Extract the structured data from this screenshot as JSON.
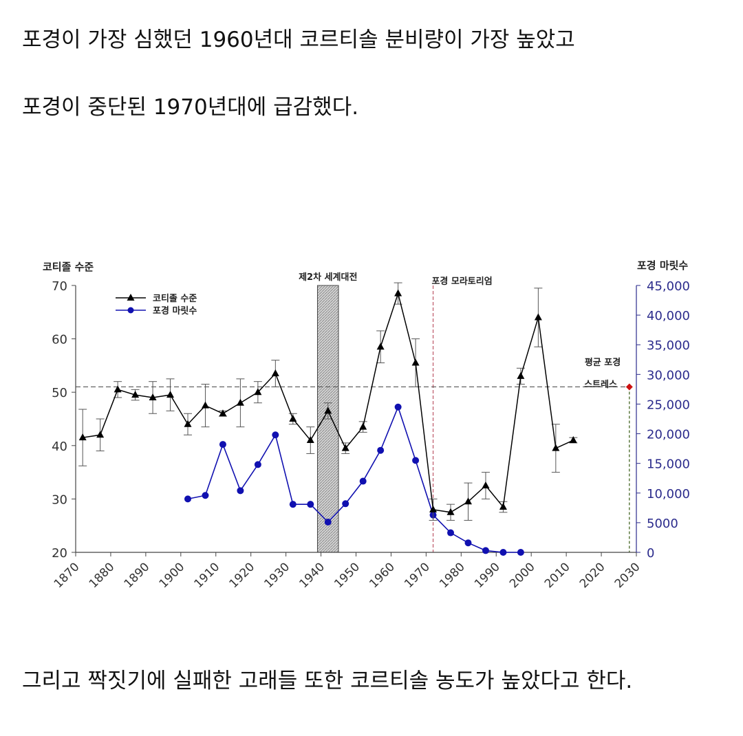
{
  "text": {
    "line1": "포경이 가장 심했던 1960년대 코르티솔 분비량이 가장 높았고",
    "line2": "포경이 중단된 1970년대에 급감했다.",
    "line3": "그리고 짝짓기에 실패한 고래들 또한 코르티솔 농도가 높았다고 한다."
  },
  "colors": {
    "cortisol": "#000000",
    "whaling": "#1010b0",
    "right_axis": "#2b2b8c",
    "stress_marker": "#cc1111",
    "wwii_band": "#bbbbbb"
  },
  "chart_data": {
    "type": "line",
    "title": "",
    "xlabel": "",
    "ylabel": "코티졸 수준",
    "y2label": "포경 마릿수",
    "xlim": [
      1870,
      2030
    ],
    "ylim": [
      20,
      70
    ],
    "y2lim": [
      0,
      45000
    ],
    "x_ticks": [
      1870,
      1880,
      1890,
      1900,
      1910,
      1920,
      1930,
      1940,
      1950,
      1960,
      1970,
      1980,
      1990,
      2000,
      2010,
      2020,
      2030
    ],
    "y_ticks": [
      20,
      30,
      40,
      50,
      60,
      70
    ],
    "y2_ticks": [
      0,
      5000,
      10000,
      15000,
      20000,
      25000,
      30000,
      35000,
      40000,
      45000
    ],
    "y2_tick_labels": [
      "0",
      "5000",
      "10,000",
      "15,000",
      "20,000",
      "25,000",
      "30,000",
      "35,000",
      "40,000",
      "45,000"
    ],
    "legend_position": "top-left",
    "series": [
      {
        "name": "코티졸 수준",
        "axis": "left",
        "marker": "triangle",
        "x": [
          1872,
          1877,
          1882,
          1887,
          1892,
          1897,
          1902,
          1907,
          1912,
          1917,
          1922,
          1927,
          1932,
          1937,
          1942,
          1947,
          1952,
          1957,
          1962,
          1967,
          1972,
          1977,
          1982,
          1987,
          1992,
          1997,
          2002,
          2007,
          2012
        ],
        "values": [
          41.5,
          42,
          50.5,
          49.5,
          49,
          49.5,
          44,
          47.5,
          46,
          48,
          50,
          53.5,
          45,
          41,
          46.5,
          39.5,
          43.5,
          58.5,
          68.5,
          55.5,
          28,
          27.5,
          29.5,
          32.5,
          28.5,
          53,
          64,
          39.5,
          41
        ],
        "error": [
          5.3,
          3,
          1.5,
          1,
          3,
          3,
          2,
          4,
          0.5,
          4.5,
          2,
          2.5,
          1,
          2.5,
          1.5,
          1,
          1,
          3,
          2,
          4.5,
          2,
          1.5,
          3.5,
          2.5,
          1,
          1.5,
          5.5,
          4.5,
          0.5
        ]
      },
      {
        "name": "포경 마릿수",
        "axis": "right",
        "marker": "circle",
        "x": [
          1902,
          1907,
          1912,
          1917,
          1922,
          1927,
          1932,
          1937,
          1942,
          1947,
          1952,
          1957,
          1962,
          1967,
          1972,
          1977,
          1982,
          1987,
          1992,
          1997
        ],
        "values": [
          9000,
          9600,
          18200,
          10400,
          14800,
          19800,
          8100,
          8100,
          5100,
          8200,
          12000,
          17200,
          24500,
          15500,
          6300,
          3300,
          1600,
          300,
          0,
          0
        ]
      }
    ],
    "annotations": {
      "wwii": {
        "label": "제2차 세계대전",
        "x_start": 1939,
        "x_end": 1945
      },
      "moratorium": {
        "label": "포경 모라토리엄",
        "x": 1972
      },
      "mean_stress": {
        "label_line1": "평균 포경",
        "label_line2": "스트레스",
        "y": 51,
        "x": 2028
      }
    }
  }
}
